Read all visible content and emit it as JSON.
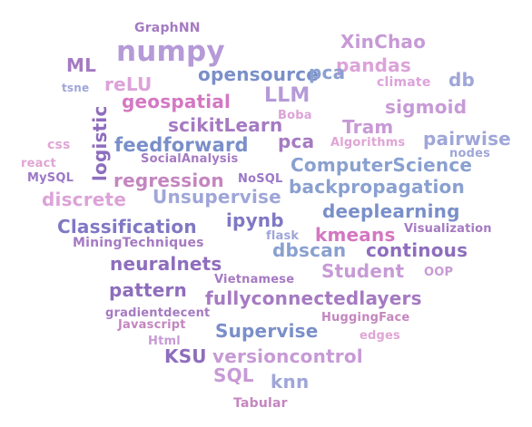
{
  "words": {
    "graphnn": "GraphNN",
    "numpy": "numpy",
    "xinchao": "XinChao",
    "ml": "ML",
    "opensource": "opensource",
    "pandas": "pandas",
    "db": "db",
    "tsne": "tsne",
    "relu": "reLU",
    "climate": "climate",
    "pca_top": "pca",
    "llm": "LLM",
    "geospatial": "geospatial",
    "sigmoid": "sigmoid",
    "logistic": "logistic",
    "boba": "Boba",
    "scikitlearn": "scikitLearn",
    "tram": "Tram",
    "pca": "pca",
    "css": "css",
    "feedforward": "feedforward",
    "algorithms": "Algorithms",
    "pairwise": "pairwise",
    "react": "react",
    "socialanalysis": "SocialAnalysis",
    "nodes": "nodes",
    "computerscience": "ComputerScience",
    "mysql": "MySQL",
    "regression": "regression",
    "nosql": "NoSQL",
    "discrete": "discrete",
    "unsupervise": "Unsupervise",
    "backpropagation": "backpropagation",
    "deeplearning": "deeplearning",
    "classification": "Classification",
    "ipynb": "ipynb",
    "kmeans": "kmeans",
    "visualization": "Visualization",
    "flask": "flask",
    "miningtechniques": "MiningTechniques",
    "dbscan": "dbscan",
    "continous": "continous",
    "neuralnets": "neuralnets",
    "student": "Student",
    "oop": "OOP",
    "vietnamese": "Vietnamese",
    "pattern": "pattern",
    "fullyconnectedlayers": "fullyconnectedlayers",
    "gradientdecent": "gradientdecent",
    "huggingface": "HuggingFace",
    "javascript": "Javascript",
    "supervise": "Supervise",
    "edges": "edges",
    "html": "Html",
    "ksu": "KSU",
    "versioncontrol": "versioncontrol",
    "sql": "SQL",
    "knn": "knn",
    "tabular": "Tabular"
  },
  "colors": {
    "lavender": "#b59ad8",
    "lilac": "#c79ad6",
    "pink": "#dca3d9",
    "mauve": "#c486bf",
    "purple": "#9b78c7",
    "violet": "#8e6dbd",
    "indigo": "#7f78c4",
    "blue": "#7a8fc9",
    "periwinkle": "#9fa6d8",
    "steel": "#8aa0d0",
    "rose": "#e0a5d4",
    "magenta": "#d477c2",
    "grape": "#a57ac2",
    "slate": "#8c97cc",
    "background": "#ffffff"
  }
}
